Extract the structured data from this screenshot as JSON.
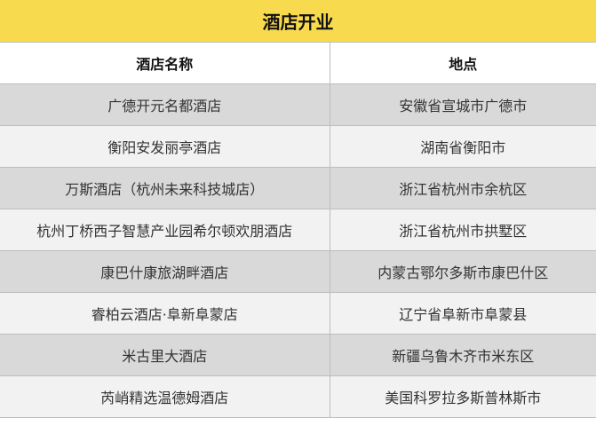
{
  "title": "酒店开业",
  "colors": {
    "title_bg": "#f8da4e",
    "row_dark": "#d9d9d9",
    "row_light": "#f2f2f2"
  },
  "table": {
    "headers": [
      "酒店名称",
      "地点"
    ],
    "rows": [
      [
        "广德开元名都酒店",
        "安徽省宣城市广德市"
      ],
      [
        "衡阳安发丽亭酒店",
        "湖南省衡阳市"
      ],
      [
        "万斯酒店（杭州未来科技城店）",
        "浙江省杭州市余杭区"
      ],
      [
        "杭州丁桥西子智慧产业园希尔顿欢朋酒店",
        "浙江省杭州市拱墅区"
      ],
      [
        "康巴什康旅湖畔酒店",
        "内蒙古鄂尔多斯市康巴什区"
      ],
      [
        "睿柏云酒店·阜新阜蒙店",
        "辽宁省阜新市阜蒙县"
      ],
      [
        "米古里大酒店",
        "新疆乌鲁木齐市米东区"
      ],
      [
        "芮峭精选温德姆酒店",
        "美国科罗拉多斯普林斯市"
      ]
    ]
  }
}
